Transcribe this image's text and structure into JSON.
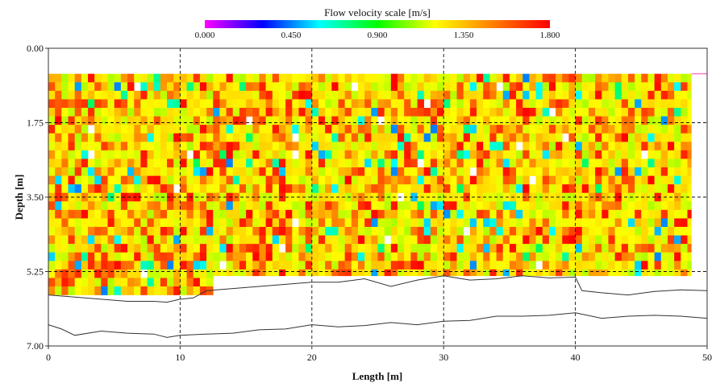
{
  "chart_data": {
    "type": "heatmap",
    "title": "",
    "xlabel": "Length [m]",
    "ylabel": "Depth [m]",
    "xlim": [
      0,
      50
    ],
    "ylim": [
      0,
      7
    ],
    "y_inverted": true,
    "x_ticks": [
      "0",
      "10",
      "20",
      "30",
      "40",
      "50"
    ],
    "y_ticks": [
      "0.00",
      "1.75",
      "3.50",
      "5.25",
      "7.00"
    ],
    "grid": "dashed at every labeled tick",
    "color_scale": {
      "title": "Flow velocity scale [m/s]",
      "ticks": [
        "0.000",
        "0.450",
        "0.900",
        "1.350",
        "1.800"
      ],
      "min": 0.0,
      "max": 1.8,
      "colors": [
        "#ff00ff",
        "#0000ff",
        "#00ffff",
        "#00ff00",
        "#ffff00",
        "#ff8000",
        "#ff0000"
      ]
    },
    "cell_grid": {
      "x_start": 0,
      "x_end": 48.8,
      "cell_width": 0.5,
      "depth_start": 0.6,
      "cell_height": 0.2,
      "rows": 27,
      "value_range": [
        0.45,
        1.8
      ],
      "typical_value": 1.2,
      "bottom_depth_profile": [
        [
          0,
          5.8
        ],
        [
          12,
          5.8
        ],
        [
          12.1,
          5.35
        ],
        [
          48.8,
          5.35
        ]
      ]
    },
    "bed_line_upper": {
      "x": [
        0,
        2,
        4,
        6,
        8,
        9,
        10,
        11,
        12,
        14,
        16,
        18,
        20,
        22,
        24,
        26,
        28,
        30,
        32,
        34,
        36,
        38,
        40,
        40.5,
        42,
        44,
        46,
        48,
        50
      ],
      "depth": [
        5.8,
        5.85,
        5.9,
        5.95,
        5.95,
        5.97,
        5.9,
        5.87,
        5.7,
        5.65,
        5.6,
        5.55,
        5.5,
        5.5,
        5.42,
        5.6,
        5.45,
        5.35,
        5.45,
        5.42,
        5.35,
        5.4,
        5.38,
        5.7,
        5.75,
        5.8,
        5.72,
        5.68,
        5.7
      ]
    },
    "bed_line_lower": {
      "x": [
        0,
        1,
        2,
        4,
        6,
        8,
        9,
        10,
        12,
        14,
        16,
        18,
        20,
        22,
        24,
        26,
        28,
        30,
        32,
        34,
        36,
        38,
        40,
        42,
        44,
        46,
        48,
        50
      ],
      "depth": [
        6.5,
        6.6,
        6.75,
        6.65,
        6.7,
        6.72,
        6.8,
        6.75,
        6.72,
        6.7,
        6.62,
        6.6,
        6.5,
        6.55,
        6.52,
        6.45,
        6.5,
        6.42,
        6.4,
        6.3,
        6.3,
        6.28,
        6.22,
        6.35,
        6.3,
        6.28,
        6.3,
        6.35
      ]
    },
    "extra_line_segment": {
      "x": [
        48.8,
        50
      ],
      "depth": [
        0.6,
        0.6
      ],
      "color": "#ff66cc"
    }
  }
}
